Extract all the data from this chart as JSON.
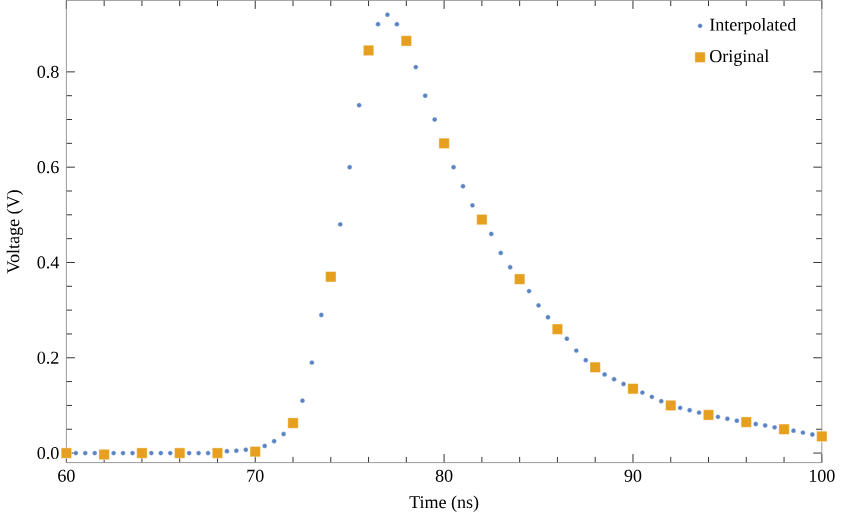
{
  "chart_data": {
    "type": "scatter",
    "xlabel": "Time (ns)",
    "ylabel": "Voltage (V)",
    "xlim": [
      60,
      100
    ],
    "ylim": [
      -0.02,
      0.95
    ],
    "xticks": [
      60,
      70,
      80,
      90,
      100
    ],
    "yticks": [
      {
        "value": 0,
        "label": "0.0"
      },
      {
        "value": 0.2,
        "label": "0.2"
      },
      {
        "value": 0.4,
        "label": "0.4"
      },
      {
        "value": 0.6,
        "label": "0.6"
      },
      {
        "value": 0.8,
        "label": "0.8"
      }
    ],
    "grid": false,
    "legend": "top right",
    "series": [
      {
        "name": "Interpolated",
        "color": "#5b84c4",
        "marker": "circle",
        "x": [
          60.5,
          61,
          61.5,
          62.5,
          63,
          63.5,
          64.5,
          65,
          65.5,
          66.5,
          67,
          67.5,
          68.5,
          69,
          69.5,
          70.5,
          71,
          71.5,
          72.5,
          73,
          73.5,
          74.5,
          75,
          75.5,
          76.5,
          77,
          77.5,
          78.5,
          79,
          79.5,
          80.5,
          81,
          81.5,
          82.5,
          83,
          83.5,
          84.5,
          85,
          85.5,
          86.5,
          87,
          87.5,
          88.5,
          89,
          89.5,
          90.5,
          91,
          91.5,
          92.5,
          93,
          93.5,
          94.5,
          95,
          95.5,
          96.5,
          97,
          97.5,
          98.5,
          99,
          99.5
        ],
        "values": [
          0,
          0,
          0,
          0,
          0,
          0,
          0,
          0,
          0,
          0,
          0,
          0,
          0.004,
          0.005,
          0.007,
          0.015,
          0.025,
          0.04,
          0.11,
          0.19,
          0.29,
          0.48,
          0.6,
          0.73,
          0.9,
          0.92,
          0.9,
          0.81,
          0.75,
          0.7,
          0.6,
          0.56,
          0.52,
          0.46,
          0.42,
          0.39,
          0.34,
          0.31,
          0.285,
          0.24,
          0.215,
          0.195,
          0.165,
          0.155,
          0.145,
          0.127,
          0.118,
          0.109,
          0.095,
          0.09,
          0.085,
          0.076,
          0.072,
          0.068,
          0.061,
          0.058,
          0.054,
          0.047,
          0.043,
          0.039
        ]
      },
      {
        "name": "Original",
        "color": "#e69f1f",
        "marker": "square",
        "x": [
          60,
          62,
          64,
          66,
          68,
          70,
          72,
          74,
          76,
          78,
          80,
          82,
          84,
          86,
          88,
          90,
          92,
          94,
          96,
          98,
          100
        ],
        "values": [
          0,
          -0.003,
          0,
          0,
          0,
          0.003,
          0.063,
          0.37,
          0.845,
          0.865,
          0.65,
          0.49,
          0.365,
          0.26,
          0.18,
          0.135,
          0.1,
          0.08,
          0.065,
          0.05,
          0.035
        ]
      }
    ]
  }
}
